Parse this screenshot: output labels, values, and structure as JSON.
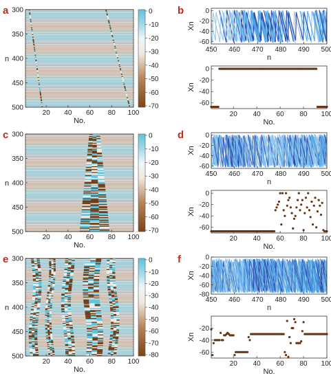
{
  "figure": {
    "panel_labels": [
      "a",
      "b",
      "c",
      "d",
      "e",
      "f"
    ]
  },
  "colors": {
    "brown": "#6e3a14",
    "cyan": "#5ec3dc",
    "line_light": "#8fc6ee",
    "line_mid": "#4ea3e6",
    "line_dark": "#1f3ca6",
    "dot": "#6b3410",
    "colorbar": [
      "#7a4416",
      "#b8865a",
      "#e9dccb",
      "#f4f4f4",
      "#cfe9f2",
      "#5ec3dc"
    ]
  },
  "chart_data": [
    {
      "panel": "a",
      "type": "heatmap",
      "xlabel": "No.",
      "ylabel": "n",
      "xlim": [
        1,
        100
      ],
      "ylim": [
        300,
        500
      ],
      "xticks": [
        "20",
        "40",
        "60",
        "80",
        "100"
      ],
      "yticks": [
        "300",
        "350",
        "400",
        "450",
        "500"
      ],
      "colorbar_ticks": [
        "0",
        "-10",
        "-20",
        "-30",
        "-40",
        "-50",
        "-60",
        "-70"
      ],
      "colorbar_range": [
        -70,
        0
      ]
    },
    {
      "panel": "b-top",
      "type": "line",
      "xlabel": "n",
      "ylabel": "Xn",
      "xlim": [
        450,
        500
      ],
      "ylim": [
        -65,
        5
      ],
      "xticks": [
        "450",
        "460",
        "470",
        "480",
        "490",
        "500"
      ],
      "yticks": [
        "0",
        "-20",
        "-40",
        "-60"
      ]
    },
    {
      "panel": "b-bottom",
      "type": "scatter",
      "xlabel": "No.",
      "ylabel": "Xn",
      "xlim": [
        1,
        100
      ],
      "ylim": [
        -70,
        5
      ],
      "xticks": [
        "20",
        "40",
        "60",
        "80",
        "100"
      ],
      "yticks": [
        "0",
        "-20",
        "-40",
        "-60"
      ],
      "x": [
        1,
        2,
        3,
        4,
        5,
        6,
        7,
        8,
        9,
        10,
        11,
        12,
        13,
        14,
        15,
        16,
        17,
        18,
        19,
        20,
        21,
        22,
        23,
        24,
        25,
        26,
        27,
        28,
        29,
        30,
        31,
        32,
        33,
        34,
        35,
        36,
        37,
        38,
        39,
        40,
        41,
        42,
        43,
        44,
        45,
        46,
        47,
        48,
        49,
        50,
        51,
        52,
        53,
        54,
        55,
        56,
        57,
        58,
        59,
        60,
        61,
        62,
        63,
        64,
        65,
        66,
        67,
        68,
        69,
        70,
        71,
        72,
        73,
        74,
        75,
        76,
        77,
        78,
        79,
        80,
        81,
        82,
        83,
        84,
        85,
        86,
        87,
        88,
        89,
        90,
        91,
        92,
        93,
        94,
        95,
        96,
        97,
        98,
        99,
        100
      ],
      "y": [
        -67,
        -67,
        -67,
        -67,
        -67,
        -67,
        -67,
        0,
        0,
        0,
        0,
        0,
        0,
        0,
        0,
        0,
        0,
        0,
        0,
        0,
        0,
        0,
        0,
        0,
        0,
        0,
        0,
        0,
        0,
        0,
        0,
        0,
        0,
        0,
        0,
        0,
        0,
        0,
        0,
        0,
        0,
        0,
        0,
        0,
        0,
        0,
        0,
        0,
        0,
        0,
        0,
        0,
        0,
        0,
        0,
        0,
        0,
        0,
        0,
        0,
        0,
        0,
        0,
        0,
        0,
        0,
        0,
        0,
        0,
        0,
        0,
        0,
        0,
        0,
        0,
        0,
        0,
        0,
        0,
        0,
        0,
        0,
        0,
        0,
        0,
        0,
        0,
        0,
        0,
        0,
        0,
        -67,
        -67,
        -67,
        -67,
        -67,
        -67,
        -67,
        -67,
        -67
      ]
    },
    {
      "panel": "c",
      "type": "heatmap",
      "xlabel": "No.",
      "ylabel": "n",
      "xlim": [
        1,
        100
      ],
      "ylim": [
        300,
        500
      ],
      "xticks": [
        "20",
        "40",
        "60",
        "80",
        "100"
      ],
      "yticks": [
        "300",
        "350",
        "400",
        "450",
        "500"
      ],
      "colorbar_ticks": [
        "0",
        "-10",
        "-20",
        "-30",
        "-40",
        "-50",
        "-60",
        "-70"
      ],
      "colorbar_range": [
        -70,
        0
      ]
    },
    {
      "panel": "d-top",
      "type": "line",
      "xlabel": "n",
      "ylabel": "Xn",
      "xlim": [
        450,
        500
      ],
      "ylim": [
        -65,
        5
      ],
      "xticks": [
        "450",
        "460",
        "470",
        "480",
        "490",
        "500"
      ],
      "yticks": [
        "0",
        "-20",
        "-40",
        "-60"
      ]
    },
    {
      "panel": "d-bottom",
      "type": "scatter",
      "xlabel": "No.",
      "ylabel": "Xn",
      "xlim": [
        1,
        100
      ],
      "ylim": [
        -70,
        5
      ],
      "xticks": [
        "20",
        "40",
        "60",
        "80",
        "100"
      ],
      "yticks": [
        "0",
        "-20",
        "-40",
        "-60"
      ],
      "x": [
        1,
        2,
        3,
        4,
        5,
        6,
        7,
        8,
        9,
        10,
        11,
        12,
        13,
        14,
        15,
        16,
        17,
        18,
        19,
        20,
        21,
        22,
        23,
        24,
        25,
        26,
        27,
        28,
        29,
        30,
        31,
        32,
        33,
        34,
        35,
        36,
        37,
        38,
        39,
        40,
        41,
        42,
        43,
        44,
        45,
        46,
        47,
        48,
        49,
        50,
        51,
        52,
        53,
        54,
        55,
        56,
        57,
        58,
        59,
        60,
        61,
        62,
        63,
        64,
        65,
        66,
        67,
        68,
        69,
        70,
        71,
        72,
        73,
        74,
        75,
        76,
        77,
        78,
        79,
        80,
        81,
        82,
        83,
        84,
        85,
        86,
        87,
        88,
        89,
        90,
        91,
        92,
        93,
        94,
        95,
        96,
        97,
        98,
        99,
        100
      ],
      "y": [
        -67,
        -67,
        -67,
        -67,
        -67,
        -67,
        -67,
        -67,
        -67,
        -67,
        -67,
        -67,
        -67,
        -67,
        -67,
        -67,
        -67,
        -67,
        -67,
        -67,
        -67,
        -67,
        -67,
        -67,
        -67,
        -67,
        -67,
        -67,
        -67,
        -67,
        -67,
        -67,
        -67,
        -67,
        -67,
        -67,
        -67,
        -67,
        -67,
        -67,
        -67,
        -67,
        -67,
        -67,
        -67,
        -67,
        -67,
        -67,
        -67,
        -67,
        -67,
        -67,
        -67,
        -67,
        -67,
        -30,
        -25,
        -20,
        -15,
        0,
        -55,
        0,
        -30,
        -40,
        0,
        -22,
        -12,
        -8,
        -25,
        -35,
        -62,
        -45,
        -40,
        -25,
        -12,
        0,
        -30,
        -20,
        -12,
        -65,
        -35,
        -8,
        -25,
        0,
        -30,
        -42,
        -15,
        -55,
        -22,
        -8,
        -60,
        -32,
        -12,
        -22,
        -38,
        -17,
        -65,
        -67,
        -67,
        -67
      ]
    },
    {
      "panel": "e",
      "type": "heatmap",
      "xlabel": "No.",
      "ylabel": "n",
      "xlim": [
        1,
        100
      ],
      "ylim": [
        300,
        500
      ],
      "xticks": [
        "20",
        "40",
        "60",
        "80",
        "100"
      ],
      "yticks": [
        "300",
        "350",
        "400",
        "450",
        "500"
      ],
      "colorbar_ticks": [
        "0",
        "-10",
        "-20",
        "-30",
        "-40",
        "-50",
        "-60",
        "-70",
        "-80"
      ],
      "colorbar_range": [
        -80,
        0
      ]
    },
    {
      "panel": "f-top",
      "type": "line",
      "xlabel": "n",
      "ylabel": "Xn",
      "xlim": [
        450,
        500
      ],
      "ylim": [
        -80,
        0
      ],
      "xticks": [
        "450",
        "460",
        "470",
        "480",
        "490",
        "500"
      ],
      "yticks": [
        "0",
        "-20",
        "-40",
        "-60",
        "-80"
      ]
    },
    {
      "panel": "f-bottom",
      "type": "scatter",
      "xlabel": "No.",
      "ylabel": "Xn",
      "xlim": [
        1,
        100
      ],
      "ylim": [
        -70,
        0
      ],
      "xticks": [
        "20",
        "40",
        "60",
        "80",
        "100"
      ],
      "yticks": [
        "-20",
        "-40",
        "-60"
      ],
      "x": [
        1,
        2,
        3,
        4,
        5,
        6,
        7,
        8,
        9,
        10,
        11,
        12,
        13,
        14,
        15,
        16,
        17,
        18,
        19,
        20,
        21,
        22,
        23,
        24,
        25,
        26,
        27,
        28,
        29,
        30,
        31,
        32,
        33,
        34,
        35,
        36,
        37,
        38,
        39,
        40,
        41,
        42,
        43,
        44,
        45,
        46,
        47,
        48,
        49,
        50,
        51,
        52,
        53,
        54,
        55,
        56,
        57,
        58,
        59,
        60,
        61,
        62,
        63,
        64,
        65,
        66,
        67,
        68,
        69,
        70,
        71,
        72,
        73,
        74,
        75,
        76,
        77,
        78,
        79,
        80,
        81,
        82,
        83,
        84,
        85,
        86,
        87,
        88,
        89,
        90,
        91,
        92,
        93,
        94,
        95,
        96,
        97,
        98,
        99,
        100
      ],
      "y": [
        -22,
        -65,
        -45,
        -40,
        -40,
        -40,
        -40,
        -40,
        -28,
        -40,
        -40,
        -32,
        -32,
        -30,
        -28,
        -30,
        -32,
        -32,
        -32,
        -32,
        -65,
        -60,
        -60,
        -60,
        -60,
        -60,
        -60,
        -60,
        -60,
        -60,
        -60,
        -60,
        -35,
        -40,
        -30,
        -30,
        -30,
        -30,
        -30,
        -30,
        -30,
        -30,
        -30,
        -30,
        -30,
        -30,
        -30,
        -30,
        -30,
        -30,
        -30,
        -30,
        -30,
        -30,
        -30,
        -30,
        -30,
        -30,
        -30,
        -30,
        -30,
        -30,
        -30,
        -60,
        -65,
        -8,
        -68,
        -35,
        -45,
        -20,
        -20,
        -5,
        -10,
        -45,
        -45,
        -45,
        -45,
        -42,
        -25,
        -10,
        -30,
        -30,
        -30,
        -30,
        -30,
        -30,
        -30,
        -30,
        -30,
        -30,
        -30,
        -30,
        -30,
        -30,
        -30,
        -30,
        -30,
        -30,
        -30,
        -30
      ]
    }
  ]
}
